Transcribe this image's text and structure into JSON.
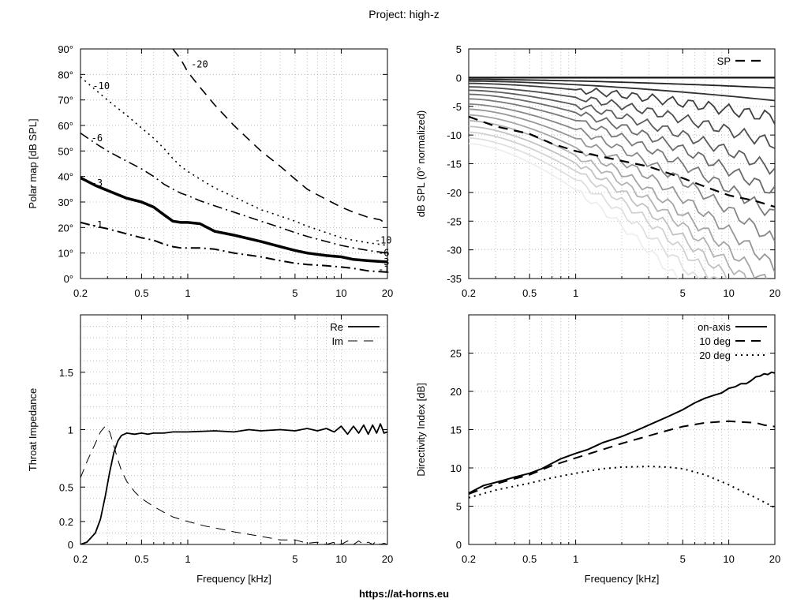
{
  "title": "Project: high-z",
  "footer": "https://at-horns.eu",
  "x_ticks": [
    "0.2",
    "0.5",
    "1",
    "5",
    "10",
    "20"
  ],
  "chart_data": [
    {
      "id": "polar",
      "type": "line",
      "title": "",
      "xlabel": "",
      "ylabel": "Polar map [dB SPL]",
      "xscale": "log",
      "xlim": [
        0.2,
        20
      ],
      "ylim": [
        0,
        90
      ],
      "grid": true,
      "y_tick_labels": [
        "0°",
        "10°",
        "20°",
        "30°",
        "40°",
        "50°",
        "60°",
        "70°",
        "80°",
        "90°"
      ],
      "y_tick_values": [
        0,
        10,
        20,
        30,
        40,
        50,
        60,
        70,
        80,
        90
      ],
      "series": [
        {
          "name": "-1",
          "style": "dashdot",
          "width": 2,
          "color": "#000000",
          "x": [
            0.2,
            0.25,
            0.3,
            0.4,
            0.5,
            0.6,
            0.7,
            0.8,
            0.9,
            1,
            1.2,
            1.5,
            2,
            3,
            4,
            5,
            6,
            8,
            10,
            12,
            15,
            20
          ],
          "y": [
            22,
            20.5,
            19.5,
            17.5,
            16,
            15,
            13.5,
            12.5,
            12,
            12,
            12,
            11.5,
            10,
            8.5,
            7,
            6,
            5.5,
            5,
            4.5,
            4,
            3,
            2.5
          ],
          "label": "-1",
          "label_x": 0.235,
          "label_y": 21,
          "end_label_x": 20.5,
          "end_label_y": 3.5
        },
        {
          "name": "-3",
          "style": "solid",
          "width": 3.5,
          "color": "#000000",
          "x": [
            0.2,
            0.25,
            0.3,
            0.4,
            0.5,
            0.6,
            0.7,
            0.8,
            0.9,
            1,
            1.2,
            1.5,
            2,
            3,
            4,
            5,
            6,
            8,
            10,
            12,
            15,
            20
          ],
          "y": [
            39.5,
            36.5,
            34.5,
            31.5,
            30,
            28,
            25,
            22.5,
            22,
            22,
            21.5,
            18.5,
            17,
            14.5,
            12.5,
            11,
            10,
            9,
            8.5,
            7.5,
            7,
            6.5
          ],
          "label": "-3",
          "label_x": 0.235,
          "label_y": 37.5,
          "end_label_x": 20.5,
          "end_label_y": 6.5
        },
        {
          "name": "-6",
          "style": "dashdot",
          "width": 1.6,
          "color": "#000000",
          "x": [
            0.2,
            0.25,
            0.3,
            0.4,
            0.5,
            0.6,
            0.7,
            0.8,
            0.9,
            1,
            1.2,
            1.5,
            2,
            3,
            4,
            5,
            6,
            8,
            10,
            12,
            15,
            20
          ],
          "y": [
            57,
            53,
            50,
            46,
            43,
            40,
            37,
            35,
            33.5,
            32.5,
            30.5,
            28.5,
            26,
            22.5,
            20,
            18,
            16.5,
            14.5,
            13,
            12,
            11,
            10
          ],
          "label": "-6",
          "label_x": 0.235,
          "label_y": 55,
          "end_label_x": 20.5,
          "end_label_y": 10
        },
        {
          "name": "-10",
          "style": "dotted",
          "width": 1.6,
          "color": "#000000",
          "x": [
            0.2,
            0.25,
            0.3,
            0.4,
            0.5,
            0.6,
            0.7,
            0.8,
            0.9,
            1,
            1.2,
            1.5,
            2,
            3,
            4,
            5,
            6,
            8,
            10,
            12,
            15,
            20
          ],
          "y": [
            79,
            74,
            70,
            64,
            59,
            55,
            51,
            47,
            44,
            42,
            39,
            35.5,
            32,
            27,
            24.5,
            22.5,
            20.5,
            18,
            16,
            15,
            14,
            13
          ],
          "label": "-10",
          "label_x": 0.24,
          "label_y": 75.5,
          "end_label_x": 19.5,
          "end_label_y": 15
        },
        {
          "name": "-20",
          "style": "dashed",
          "width": 1.6,
          "color": "#000000",
          "x": [
            0.8,
            0.9,
            1,
            1.2,
            1.5,
            2,
            2.5,
            3,
            4,
            5,
            6,
            8,
            10,
            12,
            15,
            18,
            20
          ],
          "y": [
            90,
            86,
            81,
            75,
            68,
            60,
            54.5,
            50,
            44,
            39,
            35,
            31,
            28,
            26,
            24,
            23,
            21
          ],
          "label": "-20",
          "label_x": 1.05,
          "label_y": 84
        }
      ]
    },
    {
      "id": "spl",
      "type": "line",
      "title": "",
      "xlabel": "",
      "ylabel": "dB SPL (0° normalized)",
      "xscale": "log",
      "xlim": [
        0.2,
        20
      ],
      "ylim": [
        -35,
        5
      ],
      "grid": true,
      "y_tick_labels": [
        "-35",
        "-30",
        "-25",
        "-20",
        "-15",
        "-10",
        "-5",
        "0",
        "5"
      ],
      "y_tick_values": [
        -35,
        -30,
        -25,
        -20,
        -15,
        -10,
        -5,
        0,
        5
      ],
      "legend": [
        "SP"
      ],
      "legend_position": "top-right",
      "fan": {
        "count": 16,
        "start_db_at_0_2k": [
          0,
          -0.3,
          -0.6,
          -1.0,
          -1.6,
          -2.2,
          -2.9,
          -3.7,
          -4.6,
          -5.5,
          -6.5,
          -7.5,
          -8.5,
          -9.5,
          -10.5,
          -11.5
        ],
        "end_db_at_20k": [
          0,
          -1.8,
          -4,
          -7,
          -11.5,
          -16,
          -20,
          -24,
          -28.5,
          -33,
          -37,
          -40,
          -43,
          -46,
          -50,
          -55
        ]
      },
      "series": [
        {
          "name": "SP",
          "style": "dashed",
          "width": 2.2,
          "color": "#000000",
          "x": [
            0.2,
            0.3,
            0.5,
            0.7,
            1,
            1.5,
            2,
            3,
            5,
            7,
            10,
            15,
            20
          ],
          "y": [
            -6.8,
            -8.5,
            -9.8,
            -11.5,
            -12.8,
            -13.8,
            -14.5,
            -15.5,
            -17.5,
            -19,
            -20.5,
            -21.5,
            -22.5
          ]
        }
      ]
    },
    {
      "id": "impedance",
      "type": "line",
      "title": "",
      "xlabel": "Frequency [kHz]",
      "ylabel": "Throat Impedance",
      "xscale": "log",
      "xlim": [
        0.2,
        20
      ],
      "ylim": [
        0,
        2
      ],
      "grid": true,
      "y_tick_labels": [
        "0",
        "0.2",
        "0.5",
        "1",
        "1.5"
      ],
      "y_tick_values": [
        0,
        0.2,
        0.5,
        1,
        1.5
      ],
      "legend": [
        "Re",
        "Im"
      ],
      "legend_position": "top-right",
      "series": [
        {
          "name": "Re",
          "style": "solid",
          "width": 1.8,
          "color": "#000000",
          "x": [
            0.2,
            0.22,
            0.25,
            0.27,
            0.29,
            0.31,
            0.33,
            0.35,
            0.37,
            0.4,
            0.45,
            0.5,
            0.55,
            0.6,
            0.7,
            0.8,
            1,
            1.5,
            2,
            2.5,
            3,
            4,
            5,
            6,
            7,
            8,
            9,
            10,
            11,
            12,
            13,
            14,
            15,
            16,
            17,
            18,
            19,
            20
          ],
          "y": [
            0,
            0.02,
            0.1,
            0.22,
            0.42,
            0.63,
            0.8,
            0.9,
            0.95,
            0.97,
            0.96,
            0.97,
            0.96,
            0.97,
            0.97,
            0.98,
            0.98,
            0.99,
            0.98,
            1.0,
            0.99,
            1.0,
            0.99,
            1.01,
            0.99,
            1.01,
            0.98,
            1.03,
            0.96,
            1.03,
            0.97,
            1.04,
            0.96,
            1.04,
            0.97,
            1.05,
            0.97,
            0.98
          ]
        },
        {
          "name": "Im",
          "style": "dashed",
          "width": 1,
          "color": "#000000",
          "x": [
            0.2,
            0.22,
            0.25,
            0.27,
            0.29,
            0.31,
            0.33,
            0.35,
            0.37,
            0.4,
            0.45,
            0.5,
            0.6,
            0.7,
            0.8,
            1,
            1.3,
            1.7,
            2,
            3,
            4,
            5,
            6,
            7,
            8,
            9,
            10,
            11,
            12,
            13,
            14,
            15,
            16,
            17,
            18,
            19,
            20
          ],
          "y": [
            0.58,
            0.72,
            0.88,
            0.98,
            1.03,
            0.98,
            0.86,
            0.74,
            0.64,
            0.55,
            0.46,
            0.4,
            0.33,
            0.28,
            0.24,
            0.2,
            0.16,
            0.13,
            0.11,
            0.07,
            0.04,
            0.04,
            0.01,
            0.02,
            0.0,
            0.02,
            0.0,
            0.03,
            0.0,
            0.03,
            0.0,
            0.02,
            0.0,
            0.03,
            0.0,
            0.01,
            0.0
          ]
        }
      ]
    },
    {
      "id": "di",
      "type": "line",
      "title": "",
      "xlabel": "Frequency [kHz]",
      "ylabel": "Directivity Index [dB]",
      "xscale": "log",
      "xlim": [
        0.2,
        20
      ],
      "ylim": [
        0,
        30
      ],
      "grid": true,
      "y_tick_labels": [
        "0",
        "5",
        "10",
        "15",
        "20",
        "25"
      ],
      "y_tick_values": [
        0,
        5,
        10,
        15,
        20,
        25
      ],
      "legend": [
        "on-axis",
        "10 deg",
        "20 deg"
      ],
      "legend_position": "top-right",
      "series": [
        {
          "name": "on-axis",
          "style": "solid",
          "width": 2,
          "color": "#000000",
          "x": [
            0.2,
            0.25,
            0.3,
            0.4,
            0.5,
            0.6,
            0.7,
            0.8,
            1,
            1.2,
            1.5,
            2,
            2.5,
            3,
            4,
            5,
            6,
            7,
            8,
            9,
            10,
            11,
            12,
            13,
            14,
            15,
            16,
            17,
            18,
            19,
            20
          ],
          "y": [
            6.7,
            7.7,
            8.1,
            8.8,
            9.3,
            9.9,
            10.6,
            11.2,
            11.9,
            12.4,
            13.3,
            14.1,
            14.9,
            15.6,
            16.7,
            17.6,
            18.5,
            19.1,
            19.5,
            19.8,
            20.4,
            20.6,
            21.0,
            21.0,
            21.4,
            21.9,
            22.0,
            22.3,
            22.2,
            22.5,
            22.4
          ]
        },
        {
          "name": "10 deg",
          "style": "dashed",
          "width": 2,
          "color": "#000000",
          "x": [
            0.2,
            0.3,
            0.4,
            0.5,
            0.7,
            1,
            1.5,
            2,
            3,
            4,
            5,
            7,
            10,
            12,
            15,
            17,
            20
          ],
          "y": [
            6.6,
            7.9,
            8.6,
            9.1,
            10.3,
            11.3,
            12.4,
            13.2,
            14.2,
            14.9,
            15.4,
            15.9,
            16.1,
            16.0,
            15.9,
            15.6,
            15.4
          ]
        },
        {
          "name": "20 deg",
          "style": "dotted",
          "width": 2,
          "color": "#000000",
          "x": [
            0.2,
            0.3,
            0.5,
            0.7,
            1,
            1.5,
            2,
            3,
            4,
            5,
            7,
            10,
            12,
            15,
            20
          ],
          "y": [
            6.1,
            7.1,
            8.0,
            8.7,
            9.3,
            9.9,
            10.1,
            10.2,
            10.1,
            9.9,
            9.1,
            7.8,
            7.0,
            6.1,
            4.8
          ]
        }
      ]
    }
  ]
}
